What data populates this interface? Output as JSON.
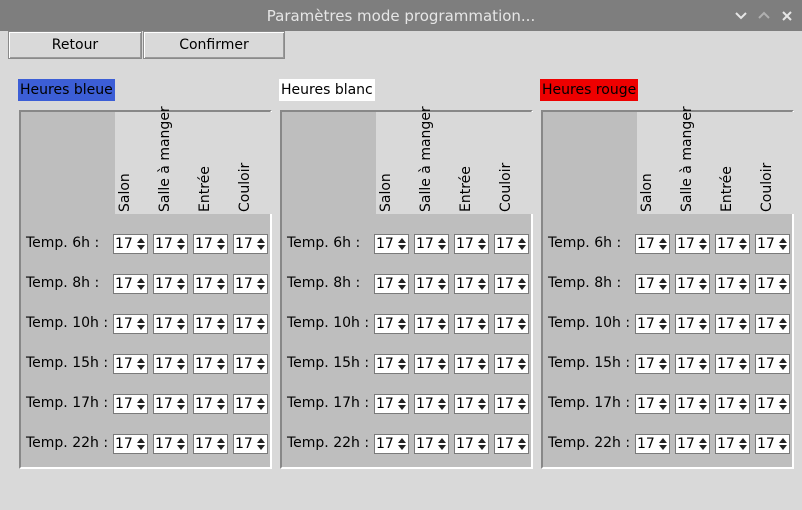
{
  "window": {
    "title": "Paramètres mode programmation..."
  },
  "toolbar": {
    "back_label": "Retour",
    "confirm_label": "Confirmer"
  },
  "colors": {
    "bleue": "#3c5ed6",
    "blanc": "#ffffff",
    "rouge": "#ee0000"
  },
  "columns": [
    "Salon",
    "Salle à manger",
    "Entrée",
    "Couloir"
  ],
  "rows": [
    "Temp. 6h :",
    "Temp. 8h :",
    "Temp. 10h :",
    "Temp. 15h :",
    "Temp. 17h :",
    "Temp. 22h :"
  ],
  "groups": [
    {
      "label": "Heures bleue",
      "values": [
        [
          "17",
          "17",
          "17",
          "17"
        ],
        [
          "17",
          "17",
          "17",
          "17"
        ],
        [
          "17",
          "17",
          "17",
          "17"
        ],
        [
          "17",
          "17",
          "17",
          "17"
        ],
        [
          "17",
          "17",
          "17",
          "17"
        ],
        [
          "17",
          "17",
          "17",
          "17"
        ]
      ]
    },
    {
      "label": "Heures blanc",
      "values": [
        [
          "17",
          "17",
          "17",
          "17"
        ],
        [
          "17",
          "17",
          "17",
          "17"
        ],
        [
          "17",
          "17",
          "17",
          "17"
        ],
        [
          "17",
          "17",
          "17",
          "17"
        ],
        [
          "17",
          "17",
          "17",
          "17"
        ],
        [
          "17",
          "17",
          "17",
          "17"
        ]
      ]
    },
    {
      "label": "Heures rouge",
      "values": [
        [
          "17",
          "17",
          "17",
          "17"
        ],
        [
          "17",
          "17",
          "17",
          "17"
        ],
        [
          "17",
          "17",
          "17",
          "17"
        ],
        [
          "17",
          "17",
          "17",
          "17"
        ],
        [
          "17",
          "17",
          "17",
          "17"
        ],
        [
          "17",
          "17",
          "17",
          "17"
        ]
      ]
    }
  ]
}
